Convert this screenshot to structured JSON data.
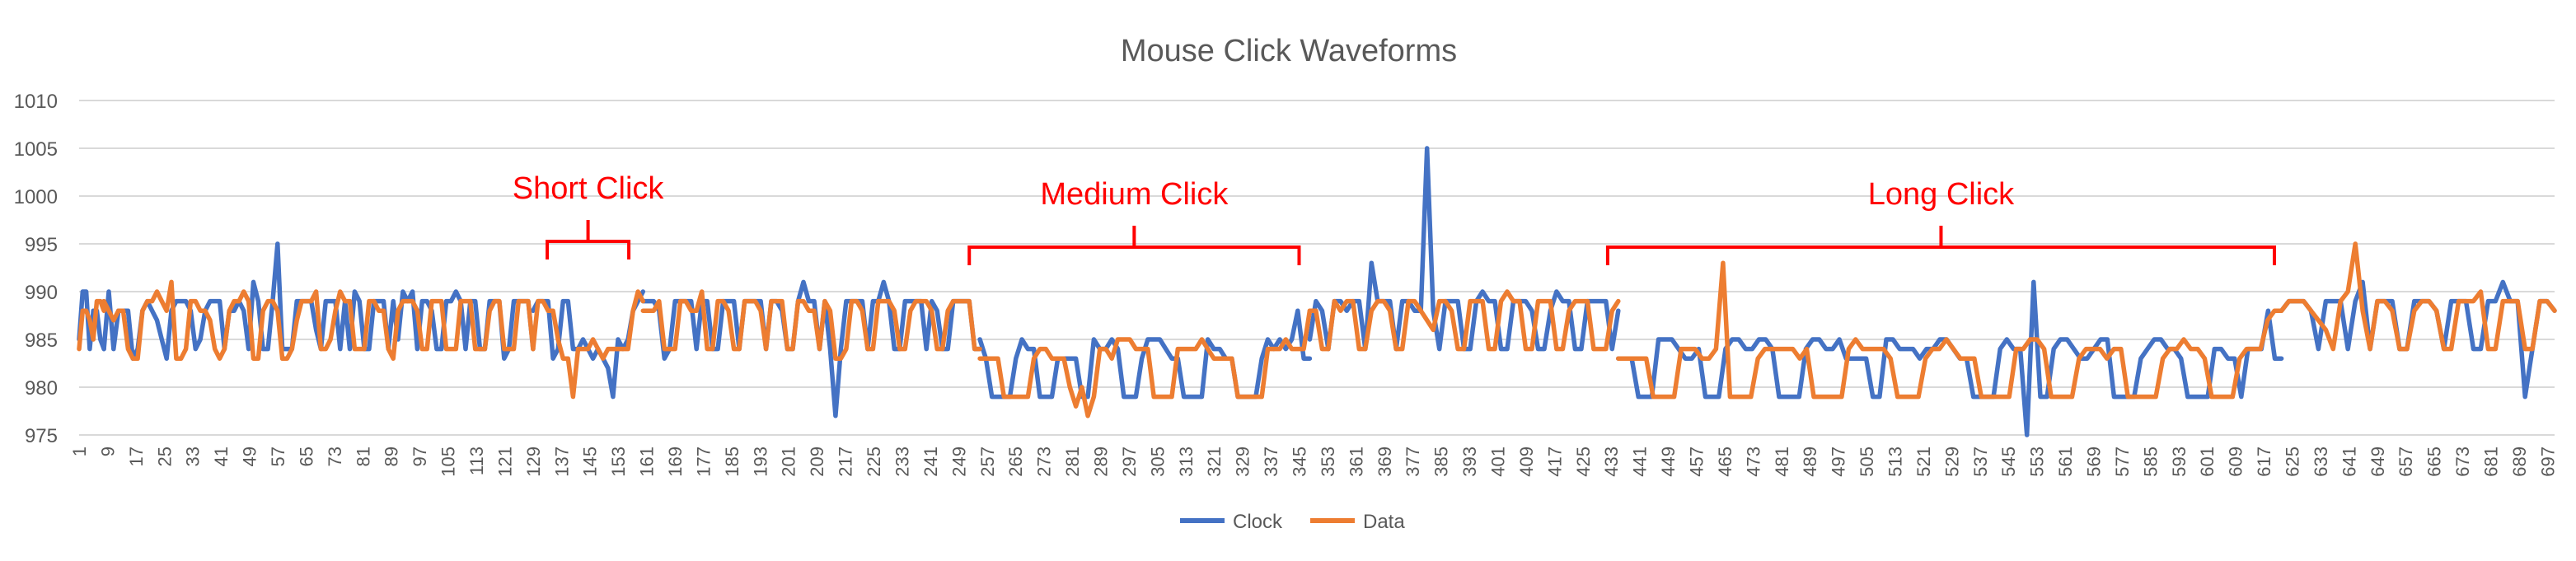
{
  "chart_data": {
    "type": "line",
    "title": "Mouse Click Waveforms",
    "xlabel": "",
    "ylabel": "",
    "ylim": [
      975,
      1010
    ],
    "yticks": [
      975,
      980,
      985,
      990,
      995,
      1000,
      1005,
      1010
    ],
    "x_range": [
      1,
      699
    ],
    "xtick_start": 1,
    "xtick_step": 8,
    "grid": true,
    "legend_position": "bottom",
    "annotation_color": "#ff0000",
    "annotations": [
      {
        "label": "Short Click",
        "x_start": 133,
        "x_end": 156
      },
      {
        "label": "Medium Click",
        "x_start": 252,
        "x_end": 345
      },
      {
        "label": "Long Click",
        "x_start": 432,
        "x_end": 620
      }
    ],
    "series": [
      {
        "name": "Clock",
        "color": "#4472c4",
        "segments": [
          {
            "x_start": 1,
            "x_end": 8,
            "values": [
              985,
              990,
              990,
              984,
              988,
              988,
              985,
              984
            ]
          },
          {
            "x_start": 8,
            "x_end": 129,
            "values": [
              984,
              990,
              984,
              988,
              988,
              988,
              983,
              984,
              988,
              989,
              988,
              987,
              985,
              983,
              988,
              989,
              989,
              989,
              988,
              984,
              985,
              988,
              989,
              989,
              989,
              984,
              988,
              988,
              989,
              988,
              984,
              991,
              989,
              984,
              984,
              989,
              995,
              984,
              984,
              984,
              989,
              989,
              989,
              989,
              986,
              984,
              989,
              989,
              989,
              984,
              989,
              984,
              990,
              989,
              984,
              984,
              989,
              989,
              989,
              984,
              989,
              985,
              990,
              989,
              990,
              984,
              989,
              989,
              988,
              984,
              984,
              989,
              989,
              990,
              989,
              984,
              989,
              989,
              984,
              984,
              989,
              989,
              989,
              983,
              984,
              989,
              989,
              989,
              989,
              984
            ]
          },
          {
            "x_start": 129,
            "x_end": 160,
            "values": [
              988,
              989,
              989,
              989,
              983,
              984,
              989,
              989,
              984,
              984,
              985,
              984,
              983,
              984,
              983,
              982,
              979,
              985,
              984,
              985,
              988,
              989,
              990
            ]
          },
          {
            "x_start": 160,
            "x_end": 255,
            "values": [
              989,
              989,
              989,
              988,
              983,
              984,
              989,
              989,
              989,
              989,
              984,
              989,
              989,
              984,
              984,
              989,
              989,
              989,
              984,
              989,
              989,
              989,
              989,
              984,
              989,
              989,
              988,
              984,
              984,
              989,
              991,
              989,
              989,
              984,
              989,
              984,
              977,
              984,
              989,
              989,
              989,
              989,
              984,
              989,
              989,
              991,
              989,
              984,
              984,
              989,
              989,
              989,
              989,
              984,
              989,
              988,
              984,
              984,
              989,
              989,
              989,
              989,
              984,
              984
            ]
          },
          {
            "x_start": 255,
            "x_end": 348,
            "values": [
              985,
              983,
              979,
              979,
              979,
              979,
              983,
              985,
              984,
              984,
              979,
              979,
              979,
              983,
              983,
              983,
              983,
              979,
              979,
              985,
              984,
              984,
              985,
              984,
              979,
              979,
              979,
              983,
              985,
              985,
              985,
              984,
              983,
              983,
              979,
              979,
              979,
              979,
              985,
              984,
              984,
              983,
              983,
              979,
              979,
              979,
              979,
              983,
              985,
              984,
              985,
              984,
              985,
              988,
              983,
              983
            ]
          },
          {
            "x_start": 348,
            "x_end": 435,
            "values": [
              985,
              989,
              988,
              984,
              989,
              989,
              988,
              989,
              989,
              984,
              993,
              989,
              989,
              989,
              984,
              989,
              989,
              988,
              988,
              1005,
              988,
              984,
              989,
              989,
              989,
              984,
              984,
              989,
              990,
              989,
              989,
              984,
              984,
              989,
              989,
              989,
              988,
              984,
              984,
              988,
              990,
              989,
              989,
              984,
              984,
              989,
              989,
              989,
              989,
              984,
              988
            ]
          },
          {
            "x_start": 435,
            "x_end": 622,
            "values": [
              983,
              983,
              983,
              979,
              979,
              979,
              985,
              985,
              985,
              984,
              983,
              983,
              984,
              979,
              979,
              979,
              984,
              985,
              985,
              984,
              984,
              985,
              985,
              984,
              979,
              979,
              979,
              979,
              984,
              985,
              985,
              984,
              984,
              985,
              983,
              983,
              983,
              983,
              979,
              979,
              985,
              985,
              984,
              984,
              984,
              983,
              984,
              984,
              985,
              985,
              984,
              983,
              983,
              979,
              979,
              979,
              979,
              984,
              985,
              984,
              984,
              975,
              991,
              979,
              979,
              984,
              985,
              985,
              984,
              983,
              983,
              984,
              985,
              985,
              979,
              979,
              979,
              979,
              983,
              984,
              985,
              985,
              984,
              984,
              983,
              979,
              979,
              979,
              979,
              984,
              984,
              983,
              983,
              979,
              984,
              984,
              984,
              988,
              983,
              983
            ]
          },
          {
            "x_start": 622,
            "x_end": 699,
            "values": [
              988,
              989,
              989,
              989,
              988,
              984,
              989,
              989,
              989,
              984,
              989,
              991,
              984,
              989,
              989,
              989,
              984,
              984,
              989,
              989,
              989,
              988,
              984,
              989,
              989,
              989,
              984,
              984,
              989,
              989,
              991,
              989,
              989,
              979,
              984,
              989,
              989,
              988
            ]
          }
        ]
      },
      {
        "name": "Data",
        "color": "#ed7d31",
        "segments": [
          {
            "x_start": 1,
            "x_end": 8,
            "values": [
              984,
              988,
              988,
              987,
              985,
              989,
              989,
              988
            ]
          },
          {
            "x_start": 8,
            "x_end": 129,
            "values": [
              989,
              988,
              987,
              988,
              988,
              984,
              983,
              983,
              988,
              989,
              989,
              990,
              989,
              988,
              991,
              983,
              983,
              984,
              989,
              989,
              988,
              988,
              987,
              984,
              983,
              984,
              988,
              989,
              989,
              990,
              989,
              983,
              983,
              988,
              989,
              989,
              988,
              983,
              983,
              984,
              987,
              989,
              989,
              989,
              990,
              984,
              984,
              985,
              988,
              990,
              989,
              989,
              984,
              984,
              984,
              989,
              989,
              988,
              988,
              984,
              983,
              988,
              989,
              989,
              989,
              988,
              984,
              984,
              989,
              989,
              989,
              984,
              984,
              984,
              989,
              989,
              989,
              984,
              984,
              984,
              988,
              989,
              989,
              984,
              984,
              984,
              989,
              989,
              989,
              984
            ]
          },
          {
            "x_start": 129,
            "x_end": 160,
            "values": [
              984,
              989,
              989,
              988,
              988,
              985,
              983,
              983,
              979,
              984,
              984,
              984,
              985,
              984,
              983,
              984,
              984,
              984,
              984,
              984,
              988,
              990,
              989
            ]
          },
          {
            "x_start": 160,
            "x_end": 255,
            "values": [
              988,
              988,
              988,
              989,
              984,
              984,
              984,
              989,
              989,
              988,
              988,
              990,
              984,
              984,
              989,
              989,
              988,
              984,
              984,
              989,
              989,
              989,
              988,
              984,
              989,
              989,
              989,
              984,
              984,
              989,
              989,
              988,
              988,
              984,
              989,
              988,
              983,
              983,
              984,
              989,
              989,
              988,
              984,
              984,
              989,
              989,
              989,
              988,
              984,
              984,
              988,
              989,
              989,
              989,
              988,
              984,
              984,
              988,
              989,
              989,
              989,
              989,
              984,
              984
            ]
          },
          {
            "x_start": 255,
            "x_end": 348,
            "values": [
              983,
              983,
              983,
              983,
              979,
              979,
              979,
              979,
              979,
              983,
              984,
              984,
              983,
              983,
              983,
              980,
              978,
              980,
              977,
              979,
              984,
              984,
              983,
              985,
              985,
              985,
              984,
              984,
              984,
              979,
              979,
              979,
              979,
              984,
              984,
              984,
              984,
              985,
              984,
              983,
              983,
              983,
              983,
              979,
              979,
              979,
              979,
              979,
              984,
              984,
              984,
              985,
              984,
              984,
              984,
              988
            ]
          },
          {
            "x_start": 348,
            "x_end": 435,
            "values": [
              988,
              988,
              984,
              984,
              989,
              988,
              989,
              989,
              984,
              984,
              988,
              989,
              989,
              988,
              984,
              984,
              989,
              989,
              988,
              987,
              986,
              989,
              989,
              988,
              984,
              984,
              989,
              989,
              989,
              984,
              984,
              989,
              990,
              989,
              989,
              984,
              984,
              989,
              989,
              989,
              984,
              984,
              988,
              989,
              989,
              989,
              984,
              984,
              984,
              988,
              989
            ]
          },
          {
            "x_start": 435,
            "x_end": 622,
            "values": [
              983,
              983,
              983,
              983,
              983,
              979,
              979,
              979,
              979,
              984,
              984,
              984,
              983,
              983,
              984,
              993,
              979,
              979,
              979,
              979,
              983,
              984,
              984,
              984,
              984,
              984,
              983,
              984,
              979,
              979,
              979,
              979,
              979,
              984,
              985,
              984,
              984,
              984,
              984,
              983,
              979,
              979,
              979,
              979,
              983,
              984,
              984,
              985,
              984,
              983,
              983,
              983,
              979,
              979,
              979,
              979,
              979,
              984,
              984,
              985,
              985,
              984,
              979,
              979,
              979,
              979,
              983,
              984,
              984,
              984,
              983,
              984,
              984,
              979,
              979,
              979,
              979,
              979,
              983,
              984,
              984,
              985,
              984,
              984,
              983,
              979,
              979,
              979,
              979,
              983,
              984,
              984,
              984,
              987,
              988,
              988
            ]
          },
          {
            "x_start": 622,
            "x_end": 699,
            "values": [
              988,
              989,
              989,
              989,
              988,
              987,
              986,
              984,
              989,
              990,
              995,
              988,
              984,
              989,
              989,
              988,
              984,
              984,
              988,
              989,
              989,
              988,
              984,
              984,
              989,
              989,
              989,
              990,
              984,
              984,
              989,
              989,
              989,
              984,
              984,
              989,
              989,
              988
            ]
          }
        ]
      }
    ]
  }
}
